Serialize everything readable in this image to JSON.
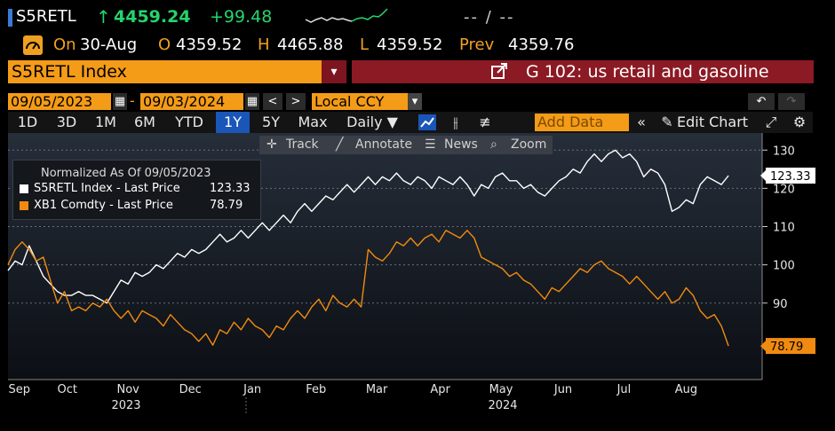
{
  "header": {
    "ticker": "S5RETL",
    "arrow": "↑",
    "last": "4459.24",
    "change": "+99.48",
    "bidask": "-- / --",
    "on_label": "On",
    "date": "30-Aug",
    "open_label": "O",
    "open": "4359.52",
    "high_label": "H",
    "high": "4465.88",
    "low_label": "L",
    "low": "4359.52",
    "prev_label": "Prev",
    "prev": "4359.76"
  },
  "security": {
    "name": "S5RETL Index",
    "dropdown": "▾",
    "function_text": "G 102: us retail and gasoline"
  },
  "range": {
    "start": "09/05/2023",
    "sep": "-",
    "end": "09/03/2024",
    "currency": "Local CCY"
  },
  "tabs": {
    "periods": [
      "1D",
      "3D",
      "1M",
      "6M",
      "YTD",
      "1Y",
      "5Y",
      "Max"
    ],
    "selected": "1Y",
    "frequency": "Daily ▼",
    "add_data_placeholder": "Add Data",
    "edit_chart": "Edit Chart"
  },
  "toolbar": {
    "track": "Track",
    "annotate": "Annotate",
    "news": "News",
    "zoom": "Zoom"
  },
  "legend": {
    "title": "Normalized As Of 09/05/2023",
    "items": [
      {
        "label": "S5RETL Index - Last Price",
        "value": "123.33",
        "color": "#ffffff"
      },
      {
        "label": "XB1 Comdty - Last Price",
        "value": "78.79",
        "color": "#f08a10"
      }
    ]
  },
  "chart_data": {
    "type": "line",
    "ylim": [
      70,
      134
    ],
    "yticks": [
      90,
      100,
      110,
      120,
      130
    ],
    "ytick_labels": [
      "90",
      "100",
      "110",
      "120",
      "130"
    ],
    "xlim": [
      0,
      52
    ],
    "months": [
      {
        "label": "Sep",
        "x": 0.8
      },
      {
        "label": "Oct",
        "x": 4.2
      },
      {
        "label": "Nov",
        "x": 8.5
      },
      {
        "label": "Dec",
        "x": 12.9
      },
      {
        "label": "Jan",
        "x": 17.3
      },
      {
        "label": "Feb",
        "x": 21.8
      },
      {
        "label": "Mar",
        "x": 26.1
      },
      {
        "label": "Apr",
        "x": 30.6
      },
      {
        "label": "May",
        "x": 34.9
      },
      {
        "label": "Jun",
        "x": 39.3
      },
      {
        "label": "Jul",
        "x": 43.6
      },
      {
        "label": "Aug",
        "x": 48.0
      }
    ],
    "years": [
      {
        "label": "2023",
        "x": 8.0
      },
      {
        "label": "2024",
        "x": 34.0
      }
    ],
    "series": [
      {
        "name": "S5RETL Index - Last Price",
        "color": "#ffffff",
        "last_label": "123.33",
        "points": [
          [
            0,
            98.5
          ],
          [
            0.5,
            101
          ],
          [
            1,
            100
          ],
          [
            1.5,
            105
          ],
          [
            2,
            101
          ],
          [
            2.5,
            97
          ],
          [
            3,
            95
          ],
          [
            3.5,
            93
          ],
          [
            4,
            92
          ],
          [
            4.5,
            92
          ],
          [
            5,
            93
          ],
          [
            5.5,
            92
          ],
          [
            6,
            92
          ],
          [
            6.5,
            91
          ],
          [
            7,
            90
          ],
          [
            7.5,
            93
          ],
          [
            8,
            96
          ],
          [
            8.5,
            95
          ],
          [
            9,
            98
          ],
          [
            9.5,
            97
          ],
          [
            10,
            98
          ],
          [
            10.5,
            100
          ],
          [
            11,
            99
          ],
          [
            11.5,
            101
          ],
          [
            12,
            103
          ],
          [
            12.5,
            102
          ],
          [
            13,
            104
          ],
          [
            13.5,
            103
          ],
          [
            14,
            104
          ],
          [
            14.5,
            106
          ],
          [
            15,
            108
          ],
          [
            15.5,
            106
          ],
          [
            16,
            107
          ],
          [
            16.5,
            109
          ],
          [
            17,
            107
          ],
          [
            17.5,
            109
          ],
          [
            18,
            111
          ],
          [
            18.5,
            109
          ],
          [
            19,
            111
          ],
          [
            19.5,
            113
          ],
          [
            20,
            111
          ],
          [
            20.5,
            114
          ],
          [
            21,
            116
          ],
          [
            21.5,
            114
          ],
          [
            22,
            116
          ],
          [
            22.5,
            118
          ],
          [
            23,
            117
          ],
          [
            23.5,
            119
          ],
          [
            24,
            121
          ],
          [
            24.5,
            119
          ],
          [
            25,
            121
          ],
          [
            25.5,
            123
          ],
          [
            26,
            121
          ],
          [
            26.5,
            123
          ],
          [
            27,
            122
          ],
          [
            27.5,
            124
          ],
          [
            28,
            122
          ],
          [
            28.5,
            121
          ],
          [
            29,
            123
          ],
          [
            29.5,
            122
          ],
          [
            30,
            120
          ],
          [
            30.5,
            123
          ],
          [
            31,
            122
          ],
          [
            31.5,
            121
          ],
          [
            32,
            123
          ],
          [
            32.5,
            121
          ],
          [
            33,
            118
          ],
          [
            33.5,
            121
          ],
          [
            34,
            120
          ],
          [
            34.5,
            123
          ],
          [
            35,
            124
          ],
          [
            35.5,
            122
          ],
          [
            36,
            122
          ],
          [
            36.5,
            120
          ],
          [
            37,
            121
          ],
          [
            37.5,
            119
          ],
          [
            38,
            118
          ],
          [
            38.5,
            120
          ],
          [
            39,
            122
          ],
          [
            39.5,
            123
          ],
          [
            40,
            125
          ],
          [
            40.5,
            124
          ],
          [
            41,
            127
          ],
          [
            41.5,
            129
          ],
          [
            42,
            127
          ],
          [
            42.5,
            129
          ],
          [
            43,
            130
          ],
          [
            43.5,
            128
          ],
          [
            44,
            129
          ],
          [
            44.5,
            127
          ],
          [
            45,
            123
          ],
          [
            45.5,
            125
          ],
          [
            46,
            124
          ],
          [
            46.5,
            121
          ],
          [
            47,
            114
          ],
          [
            47.5,
            115
          ],
          [
            48,
            117
          ],
          [
            48.5,
            116
          ],
          [
            49,
            121
          ],
          [
            49.5,
            123
          ],
          [
            50,
            122
          ],
          [
            50.5,
            121
          ],
          [
            51,
            123.33
          ]
        ]
      },
      {
        "name": "XB1 Comdty - Last Price",
        "color": "#f08a10",
        "last_label": "78.79",
        "points": [
          [
            0,
            100
          ],
          [
            0.5,
            104
          ],
          [
            1,
            106
          ],
          [
            1.5,
            104
          ],
          [
            2,
            101
          ],
          [
            2.5,
            102
          ],
          [
            3,
            96
          ],
          [
            3.5,
            90
          ],
          [
            4,
            93
          ],
          [
            4.5,
            88
          ],
          [
            5,
            89
          ],
          [
            5.5,
            88
          ],
          [
            6,
            90
          ],
          [
            6.5,
            89
          ],
          [
            7,
            91
          ],
          [
            7.5,
            88
          ],
          [
            8,
            86
          ],
          [
            8.5,
            88
          ],
          [
            9,
            85
          ],
          [
            9.5,
            88
          ],
          [
            10,
            87
          ],
          [
            10.5,
            86
          ],
          [
            11,
            84
          ],
          [
            11.5,
            87
          ],
          [
            12,
            85
          ],
          [
            12.5,
            83
          ],
          [
            13,
            82
          ],
          [
            13.5,
            80
          ],
          [
            14,
            82
          ],
          [
            14.5,
            79
          ],
          [
            15,
            83
          ],
          [
            15.5,
            82
          ],
          [
            16,
            85
          ],
          [
            16.5,
            83
          ],
          [
            17,
            86
          ],
          [
            17.5,
            84
          ],
          [
            18,
            83
          ],
          [
            18.5,
            81
          ],
          [
            19,
            84
          ],
          [
            19.5,
            83
          ],
          [
            20,
            86
          ],
          [
            20.5,
            88
          ],
          [
            21,
            86
          ],
          [
            21.5,
            89
          ],
          [
            22,
            91
          ],
          [
            22.5,
            88
          ],
          [
            23,
            92
          ],
          [
            23.5,
            90
          ],
          [
            24,
            89
          ],
          [
            24.5,
            91
          ],
          [
            25,
            89
          ],
          [
            25.5,
            104
          ],
          [
            26,
            102
          ],
          [
            26.5,
            101
          ],
          [
            27,
            103
          ],
          [
            27.5,
            106
          ],
          [
            28,
            105
          ],
          [
            28.5,
            107
          ],
          [
            29,
            105
          ],
          [
            29.5,
            107
          ],
          [
            30,
            108
          ],
          [
            30.5,
            106
          ],
          [
            31,
            109
          ],
          [
            31.5,
            108
          ],
          [
            32,
            107
          ],
          [
            32.5,
            109
          ],
          [
            33,
            107
          ],
          [
            33.5,
            102
          ],
          [
            34,
            101
          ],
          [
            34.5,
            100
          ],
          [
            35,
            99
          ],
          [
            35.5,
            97
          ],
          [
            36,
            98
          ],
          [
            36.5,
            96
          ],
          [
            37,
            95
          ],
          [
            37.5,
            93
          ],
          [
            38,
            91
          ],
          [
            38.5,
            94
          ],
          [
            39,
            93
          ],
          [
            39.5,
            95
          ],
          [
            40,
            97
          ],
          [
            40.5,
            99
          ],
          [
            41,
            98
          ],
          [
            41.5,
            100
          ],
          [
            42,
            101
          ],
          [
            42.5,
            99
          ],
          [
            43,
            98
          ],
          [
            43.5,
            97
          ],
          [
            44,
            95
          ],
          [
            44.5,
            97
          ],
          [
            45,
            95
          ],
          [
            45.5,
            93
          ],
          [
            46,
            91
          ],
          [
            46.5,
            93
          ],
          [
            47,
            90
          ],
          [
            47.5,
            91
          ],
          [
            48,
            94
          ],
          [
            48.5,
            92
          ],
          [
            49,
            88
          ],
          [
            49.5,
            86
          ],
          [
            50,
            87
          ],
          [
            50.5,
            84
          ],
          [
            51,
            78.79
          ]
        ]
      }
    ]
  },
  "colors": {
    "accent": "#f49b17",
    "banner": "#8b1a24",
    "positive": "#25d46b",
    "selected_tab": "#1a56b8"
  }
}
